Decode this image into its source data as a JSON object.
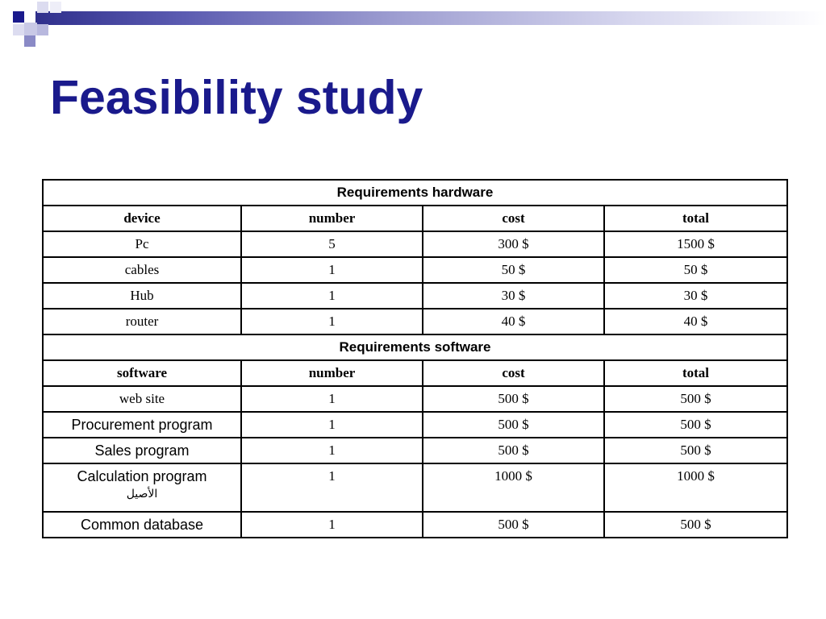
{
  "slide": {
    "title": "Feasibility study"
  },
  "hardware": {
    "section_title": "Requirements hardware",
    "headers": [
      "device",
      "number",
      "cost",
      "total"
    ],
    "rows": [
      [
        "Pc",
        "5",
        "300 $",
        "1500 $"
      ],
      [
        "cables",
        "1",
        "50 $",
        "50 $"
      ],
      [
        "Hub",
        "1",
        "30 $",
        "30 $"
      ],
      [
        "router",
        "1",
        "40 $",
        "40 $"
      ]
    ]
  },
  "software": {
    "section_title": "Requirements software",
    "headers": [
      "software",
      "number",
      "cost",
      "total"
    ],
    "rows": [
      [
        "web site",
        "1",
        "500 $",
        "500 $"
      ],
      [
        "Procurement program",
        "1",
        "500 $",
        "500 $"
      ],
      [
        "Sales program",
        "1",
        "500 $",
        "500 $"
      ],
      [
        "Calculation program",
        "1",
        "1000 $",
        "1000 $"
      ],
      [
        "Common database",
        "1",
        "500 $",
        "500 $"
      ]
    ],
    "calc_program_arabic": "الأصيل"
  },
  "colors": {
    "title": "#1a1a8c",
    "band_dark": "#2f2f8c",
    "border": "#000000"
  }
}
